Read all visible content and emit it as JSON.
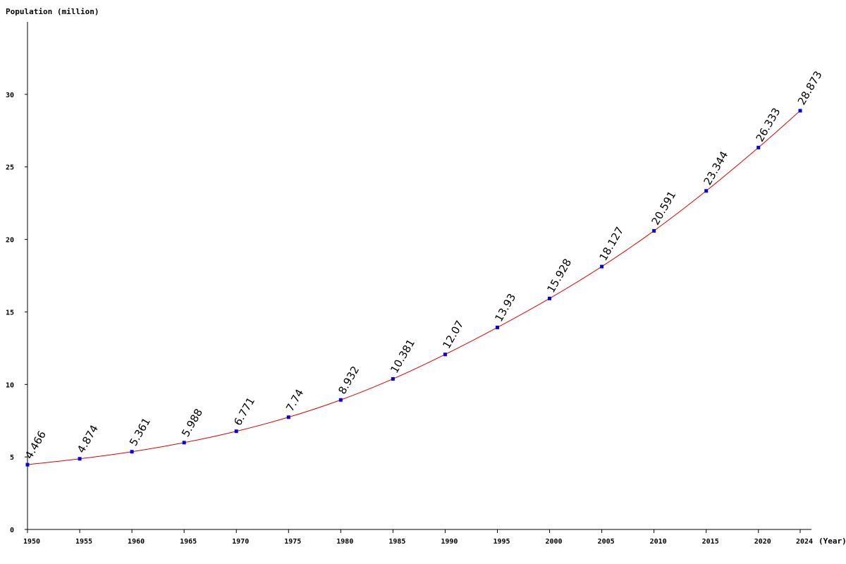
{
  "colors": {
    "line": "#dd0000",
    "marker": "#0000ee",
    "axis": "#000000",
    "background": "#ffffff"
  },
  "chart_data": {
    "type": "line",
    "title": "",
    "ylabel": "Population (million)",
    "xlabel": "(Year)",
    "xlim": [
      1950,
      2024
    ],
    "ylim": [
      0,
      35
    ],
    "grid": false,
    "legend": "none",
    "x_ticks": [
      1950,
      1955,
      1960,
      1965,
      1970,
      1975,
      1980,
      1985,
      1990,
      1995,
      2000,
      2005,
      2010,
      2015,
      2020,
      2024
    ],
    "y_ticks": [
      0,
      5,
      10,
      15,
      20,
      25,
      30
    ],
    "x": [
      1950,
      1955,
      1960,
      1965,
      1970,
      1975,
      1980,
      1985,
      1990,
      1995,
      2000,
      2005,
      2010,
      2015,
      2020,
      2024
    ],
    "y": [
      4.466,
      4.874,
      5.361,
      5.988,
      6.771,
      7.74,
      8.932,
      10.381,
      12.07,
      13.93,
      15.928,
      18.127,
      20.591,
      23.344,
      26.333,
      28.873
    ],
    "data_labels": [
      "4.466",
      "4.874",
      "5.361",
      "5.988",
      "6.771",
      "7.74",
      "8.932",
      "10.381",
      "12.07",
      "13.93",
      "15.928",
      "18.127",
      "20.591",
      "23.344",
      "26.333",
      "28.873"
    ]
  }
}
